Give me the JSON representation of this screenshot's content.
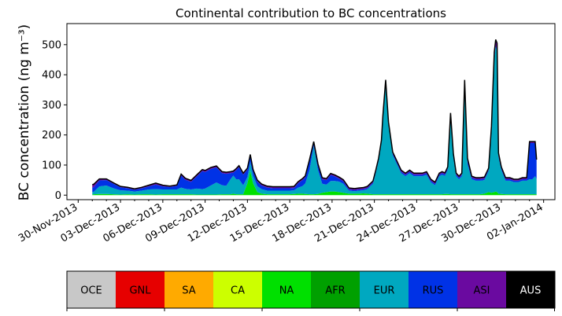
{
  "chart_data": {
    "type": "area",
    "title": "Continental contribution to BC concentrations",
    "ylabel": "BC concentration (ng m⁻³)",
    "xlabel": "",
    "ylim": [
      -15,
      570
    ],
    "yticks": [
      0,
      100,
      200,
      300,
      400,
      500
    ],
    "xlim": [
      -0.8,
      33.8
    ],
    "xticks": [
      {
        "day": 0,
        "label": "30-Nov-2013"
      },
      {
        "day": 3,
        "label": "03-Dec-2013"
      },
      {
        "day": 6,
        "label": "06-Dec-2013"
      },
      {
        "day": 9,
        "label": "09-Dec-2013"
      },
      {
        "day": 12,
        "label": "12-Dec-2013"
      },
      {
        "day": 15,
        "label": "15-Dec-2013"
      },
      {
        "day": 18,
        "label": "18-Dec-2013"
      },
      {
        "day": 21,
        "label": "21-Dec-2013"
      },
      {
        "day": 24,
        "label": "24-Dec-2013"
      },
      {
        "day": 27,
        "label": "27-Dec-2013"
      },
      {
        "day": 30,
        "label": "30-Dec-2013"
      },
      {
        "day": 33,
        "label": "02-Jan-2014"
      }
    ],
    "stack_order": [
      "NA",
      "EUR",
      "RUS",
      "ASI"
    ],
    "x": [
      1.0,
      1.1,
      1.5,
      2.0,
      2.5,
      3.0,
      3.5,
      4.0,
      4.5,
      5.0,
      5.5,
      6.0,
      6.5,
      7.0,
      7.3,
      7.6,
      8.0,
      8.4,
      8.8,
      9.0,
      9.4,
      9.8,
      10.2,
      10.5,
      10.8,
      11.0,
      11.2,
      11.4,
      11.7,
      12.0,
      12.2,
      12.4,
      12.7,
      13.0,
      13.4,
      13.8,
      14.2,
      14.6,
      15.0,
      15.3,
      15.6,
      15.9,
      16.1,
      16.4,
      16.7,
      17.0,
      17.3,
      17.6,
      17.9,
      18.2,
      18.5,
      18.8,
      19.2,
      19.6,
      19.9,
      20.2,
      20.5,
      20.7,
      20.9,
      21.1,
      21.3,
      21.5,
      21.6,
      21.8,
      22.0,
      22.3,
      22.6,
      22.9,
      23.2,
      23.5,
      23.8,
      24.1,
      24.4,
      24.7,
      25.0,
      25.3,
      25.6,
      25.8,
      26.0,
      26.2,
      26.4,
      26.6,
      26.8,
      27.0,
      27.2,
      27.4,
      27.6,
      27.9,
      28.2,
      28.5,
      28.8,
      29.1,
      29.3,
      29.5,
      29.6,
      29.7,
      29.8,
      30.0,
      30.3,
      30.6,
      30.9,
      31.2,
      31.5,
      31.8,
      32.0,
      32.2,
      32.4,
      32.5
    ],
    "series": [
      {
        "name": "NA",
        "color": "#00e000",
        "values": [
          2,
          3,
          4,
          4,
          3,
          2,
          3,
          2,
          3,
          3,
          2,
          3,
          3,
          3,
          3,
          3,
          3,
          2,
          2,
          2,
          2,
          2,
          3,
          3,
          3,
          5,
          3,
          3,
          3,
          40,
          80,
          40,
          10,
          5,
          3,
          3,
          3,
          3,
          3,
          4,
          5,
          5,
          4,
          3,
          3,
          4,
          8,
          10,
          12,
          12,
          10,
          8,
          5,
          5,
          5,
          6,
          5,
          4,
          3,
          3,
          3,
          3,
          3,
          3,
          3,
          3,
          3,
          3,
          3,
          3,
          3,
          3,
          3,
          3,
          3,
          3,
          3,
          3,
          4,
          4,
          3,
          3,
          3,
          3,
          3,
          3,
          3,
          3,
          3,
          3,
          5,
          10,
          8,
          10,
          12,
          10,
          5,
          4,
          3,
          3,
          3,
          3,
          3,
          3,
          3,
          3,
          3,
          3
        ]
      },
      {
        "name": "EUR",
        "color": "#00a8c0",
        "values": [
          8,
          8,
          25,
          28,
          20,
          14,
          12,
          10,
          12,
          16,
          18,
          16,
          16,
          16,
          22,
          18,
          16,
          20,
          18,
          20,
          30,
          40,
          30,
          28,
          50,
          60,
          50,
          50,
          30,
          20,
          30,
          25,
          20,
          15,
          12,
          12,
          12,
          12,
          12,
          12,
          20,
          25,
          35,
          80,
          160,
          80,
          30,
          25,
          35,
          35,
          35,
          30,
          10,
          8,
          10,
          10,
          15,
          25,
          35,
          70,
          110,
          170,
          250,
          370,
          230,
          130,
          100,
          70,
          60,
          70,
          60,
          60,
          60,
          65,
          40,
          30,
          60,
          65,
          60,
          80,
          250,
          120,
          60,
          50,
          60,
          360,
          100,
          50,
          45,
          45,
          45,
          70,
          200,
          440,
          480,
          470,
          120,
          80,
          45,
          45,
          40,
          40,
          45,
          45,
          50,
          50,
          60,
          50
        ]
      },
      {
        "name": "RUS",
        "color": "#0032e6",
        "values": [
          15,
          15,
          20,
          18,
          15,
          10,
          8,
          6,
          8,
          10,
          15,
          10,
          8,
          12,
          40,
          30,
          25,
          40,
          60,
          55,
          55,
          50,
          40,
          40,
          20,
          10,
          30,
          40,
          35,
          25,
          20,
          15,
          15,
          12,
          10,
          8,
          8,
          8,
          8,
          8,
          15,
          20,
          20,
          30,
          10,
          15,
          15,
          15,
          20,
          15,
          10,
          8,
          4,
          4,
          4,
          4,
          4,
          4,
          4,
          5,
          5,
          5,
          5,
          5,
          5,
          5,
          5,
          5,
          5,
          5,
          5,
          5,
          5,
          5,
          5,
          5,
          5,
          5,
          5,
          5,
          10,
          10,
          5,
          5,
          5,
          10,
          10,
          5,
          5,
          5,
          5,
          5,
          10,
          10,
          5,
          5,
          5,
          5,
          5,
          5,
          5,
          5,
          5,
          5,
          120,
          120,
          110,
          60
        ]
      },
      {
        "name": "ASI",
        "color": "#6a0aa0",
        "values": [
          10,
          10,
          5,
          4,
          3,
          3,
          3,
          3,
          3,
          4,
          5,
          4,
          3,
          3,
          5,
          5,
          5,
          5,
          5,
          5,
          5,
          5,
          5,
          5,
          5,
          5,
          5,
          5,
          5,
          5,
          5,
          5,
          5,
          5,
          5,
          5,
          5,
          5,
          5,
          5,
          5,
          5,
          5,
          5,
          5,
          5,
          5,
          5,
          5,
          5,
          5,
          5,
          5,
          5,
          5,
          5,
          5,
          5,
          5,
          5,
          5,
          5,
          5,
          5,
          5,
          5,
          5,
          5,
          5,
          5,
          5,
          5,
          5,
          5,
          5,
          5,
          5,
          5,
          5,
          5,
          10,
          5,
          5,
          5,
          5,
          10,
          10,
          5,
          5,
          5,
          5,
          5,
          10,
          15,
          20,
          20,
          10,
          5,
          5,
          5,
          5,
          5,
          5,
          5,
          5,
          5,
          5,
          5
        ]
      }
    ],
    "legend": [
      {
        "label": "OCE",
        "color": "#c8c8c8",
        "text_color": "#000000"
      },
      {
        "label": "GNL",
        "color": "#e60000",
        "text_color": "#000000"
      },
      {
        "label": "SA",
        "color": "#ffaa00",
        "text_color": "#000000"
      },
      {
        "label": "CA",
        "color": "#ccff00",
        "text_color": "#000000"
      },
      {
        "label": "NA",
        "color": "#00e000",
        "text_color": "#000000"
      },
      {
        "label": "AFR",
        "color": "#00a000",
        "text_color": "#000000"
      },
      {
        "label": "EUR",
        "color": "#00a8c0",
        "text_color": "#000000"
      },
      {
        "label": "RUS",
        "color": "#0032e6",
        "text_color": "#000000"
      },
      {
        "label": "ASI",
        "color": "#6a0aa0",
        "text_color": "#000000"
      },
      {
        "label": "AUS",
        "color": "#000000",
        "text_color": "#ffffff"
      }
    ]
  }
}
